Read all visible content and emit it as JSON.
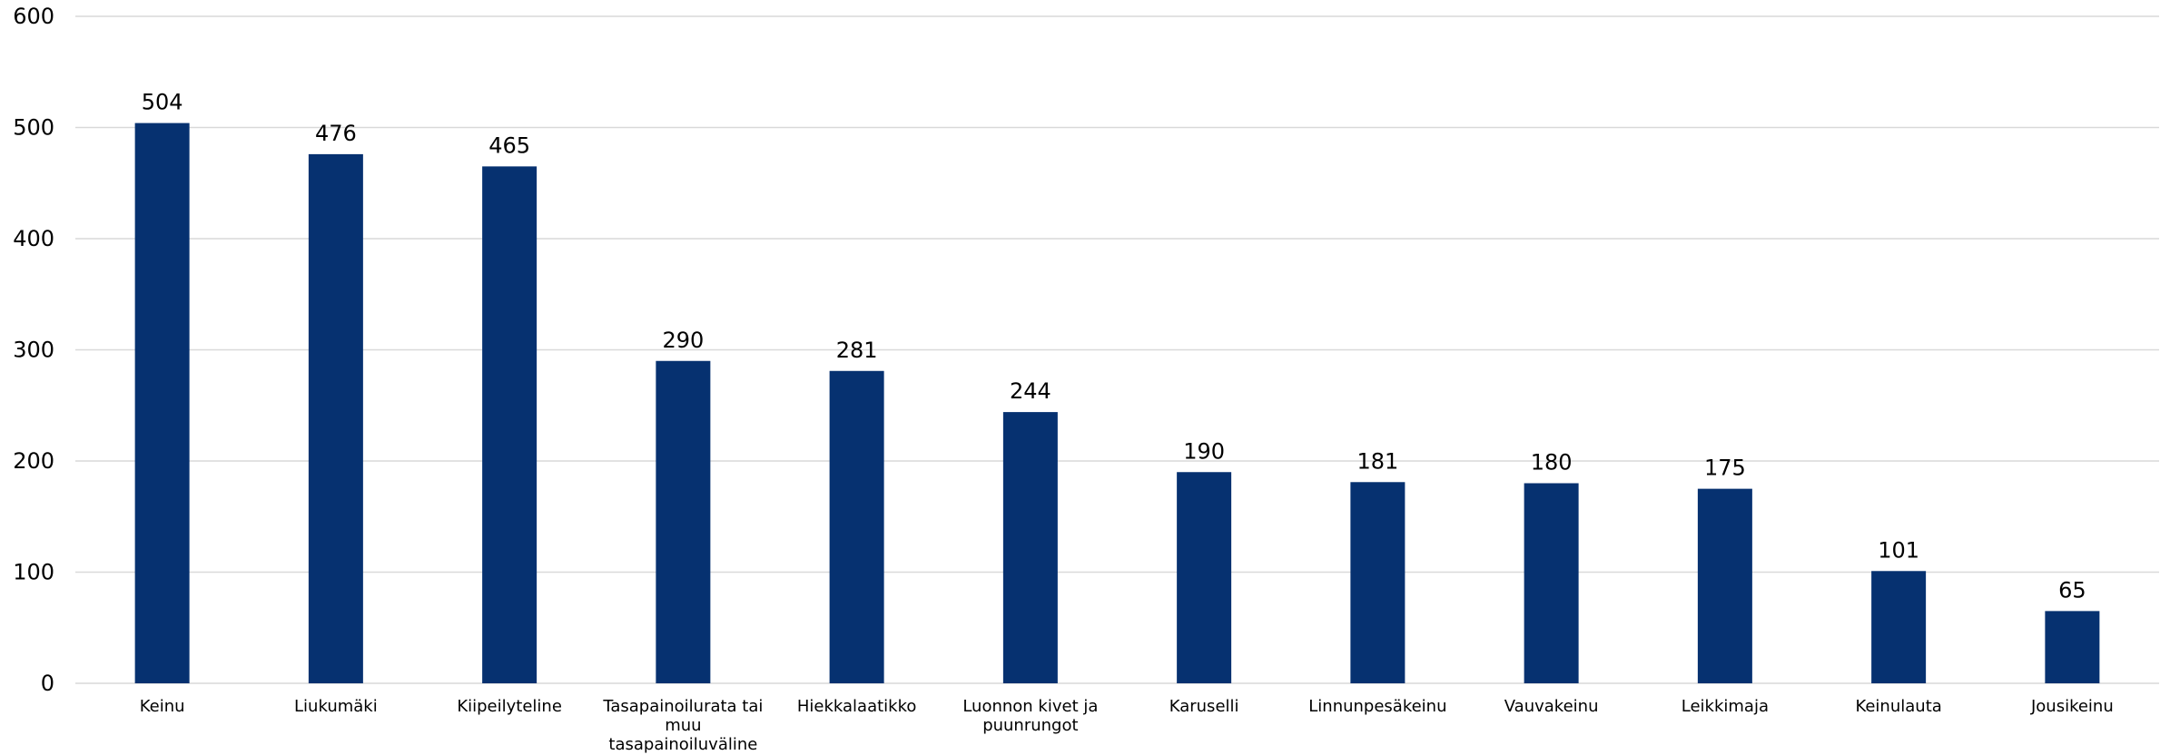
{
  "chart_data": {
    "type": "bar",
    "categories": [
      [
        "Keinu"
      ],
      [
        "Liukumäki"
      ],
      [
        "Kiipeilyteline"
      ],
      [
        "Tasapainoilurata tai",
        "muu",
        "tasapainoiluväline"
      ],
      [
        "Hiekkalaatikko"
      ],
      [
        "Luonnon kivet ja",
        "puunrungot"
      ],
      [
        "Karuselli"
      ],
      [
        "Linnunpesäkeinu"
      ],
      [
        "Vauvakeinu"
      ],
      [
        "Leikkimaja"
      ],
      [
        "Keinulauta"
      ],
      [
        "Jousikeinu"
      ]
    ],
    "values": [
      504,
      476,
      465,
      290,
      281,
      244,
      190,
      181,
      180,
      175,
      101,
      65
    ],
    "data_labels": [
      "504",
      "476",
      "465",
      "290",
      "281",
      "244",
      "190",
      "181",
      "180",
      "175",
      "101",
      "65"
    ],
    "y_ticks": [
      "0",
      "100",
      "200",
      "300",
      "400",
      "500",
      "600"
    ],
    "ylim": [
      0,
      600
    ],
    "grid": true,
    "bar_color": "#063170",
    "title": "",
    "xlabel": "",
    "ylabel": ""
  }
}
